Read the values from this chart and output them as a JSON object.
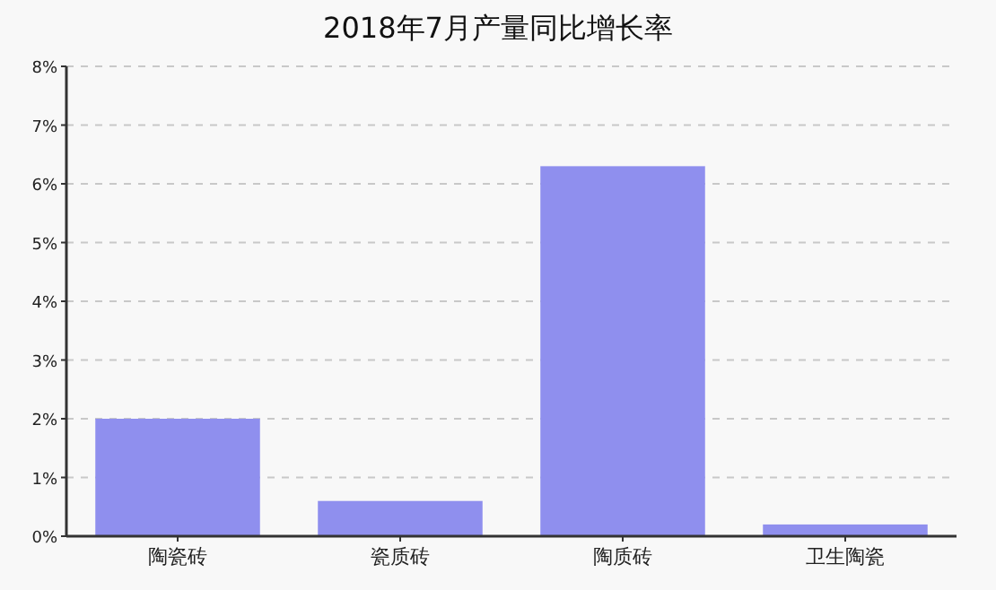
{
  "chart_data": {
    "type": "bar",
    "title": "2018年7月产量同比增长率",
    "categories": [
      "陶瓷砖",
      "瓷质砖",
      "陶质砖",
      "卫生陶瓷"
    ],
    "values": [
      2.0,
      0.6,
      6.3,
      0.2
    ],
    "color": "#8f8fee",
    "ylim": [
      0,
      8
    ],
    "yticks": [
      {
        "value": 0,
        "label": "0%"
      },
      {
        "value": 1,
        "label": "1%"
      },
      {
        "value": 2,
        "label": "2%"
      },
      {
        "value": 3,
        "label": "3%"
      },
      {
        "value": 4,
        "label": "4%"
      },
      {
        "value": 5,
        "label": "5%"
      },
      {
        "value": 6,
        "label": "6%"
      },
      {
        "value": 7,
        "label": "7%"
      },
      {
        "value": 8,
        "label": "8%"
      }
    ],
    "grid": "y"
  }
}
